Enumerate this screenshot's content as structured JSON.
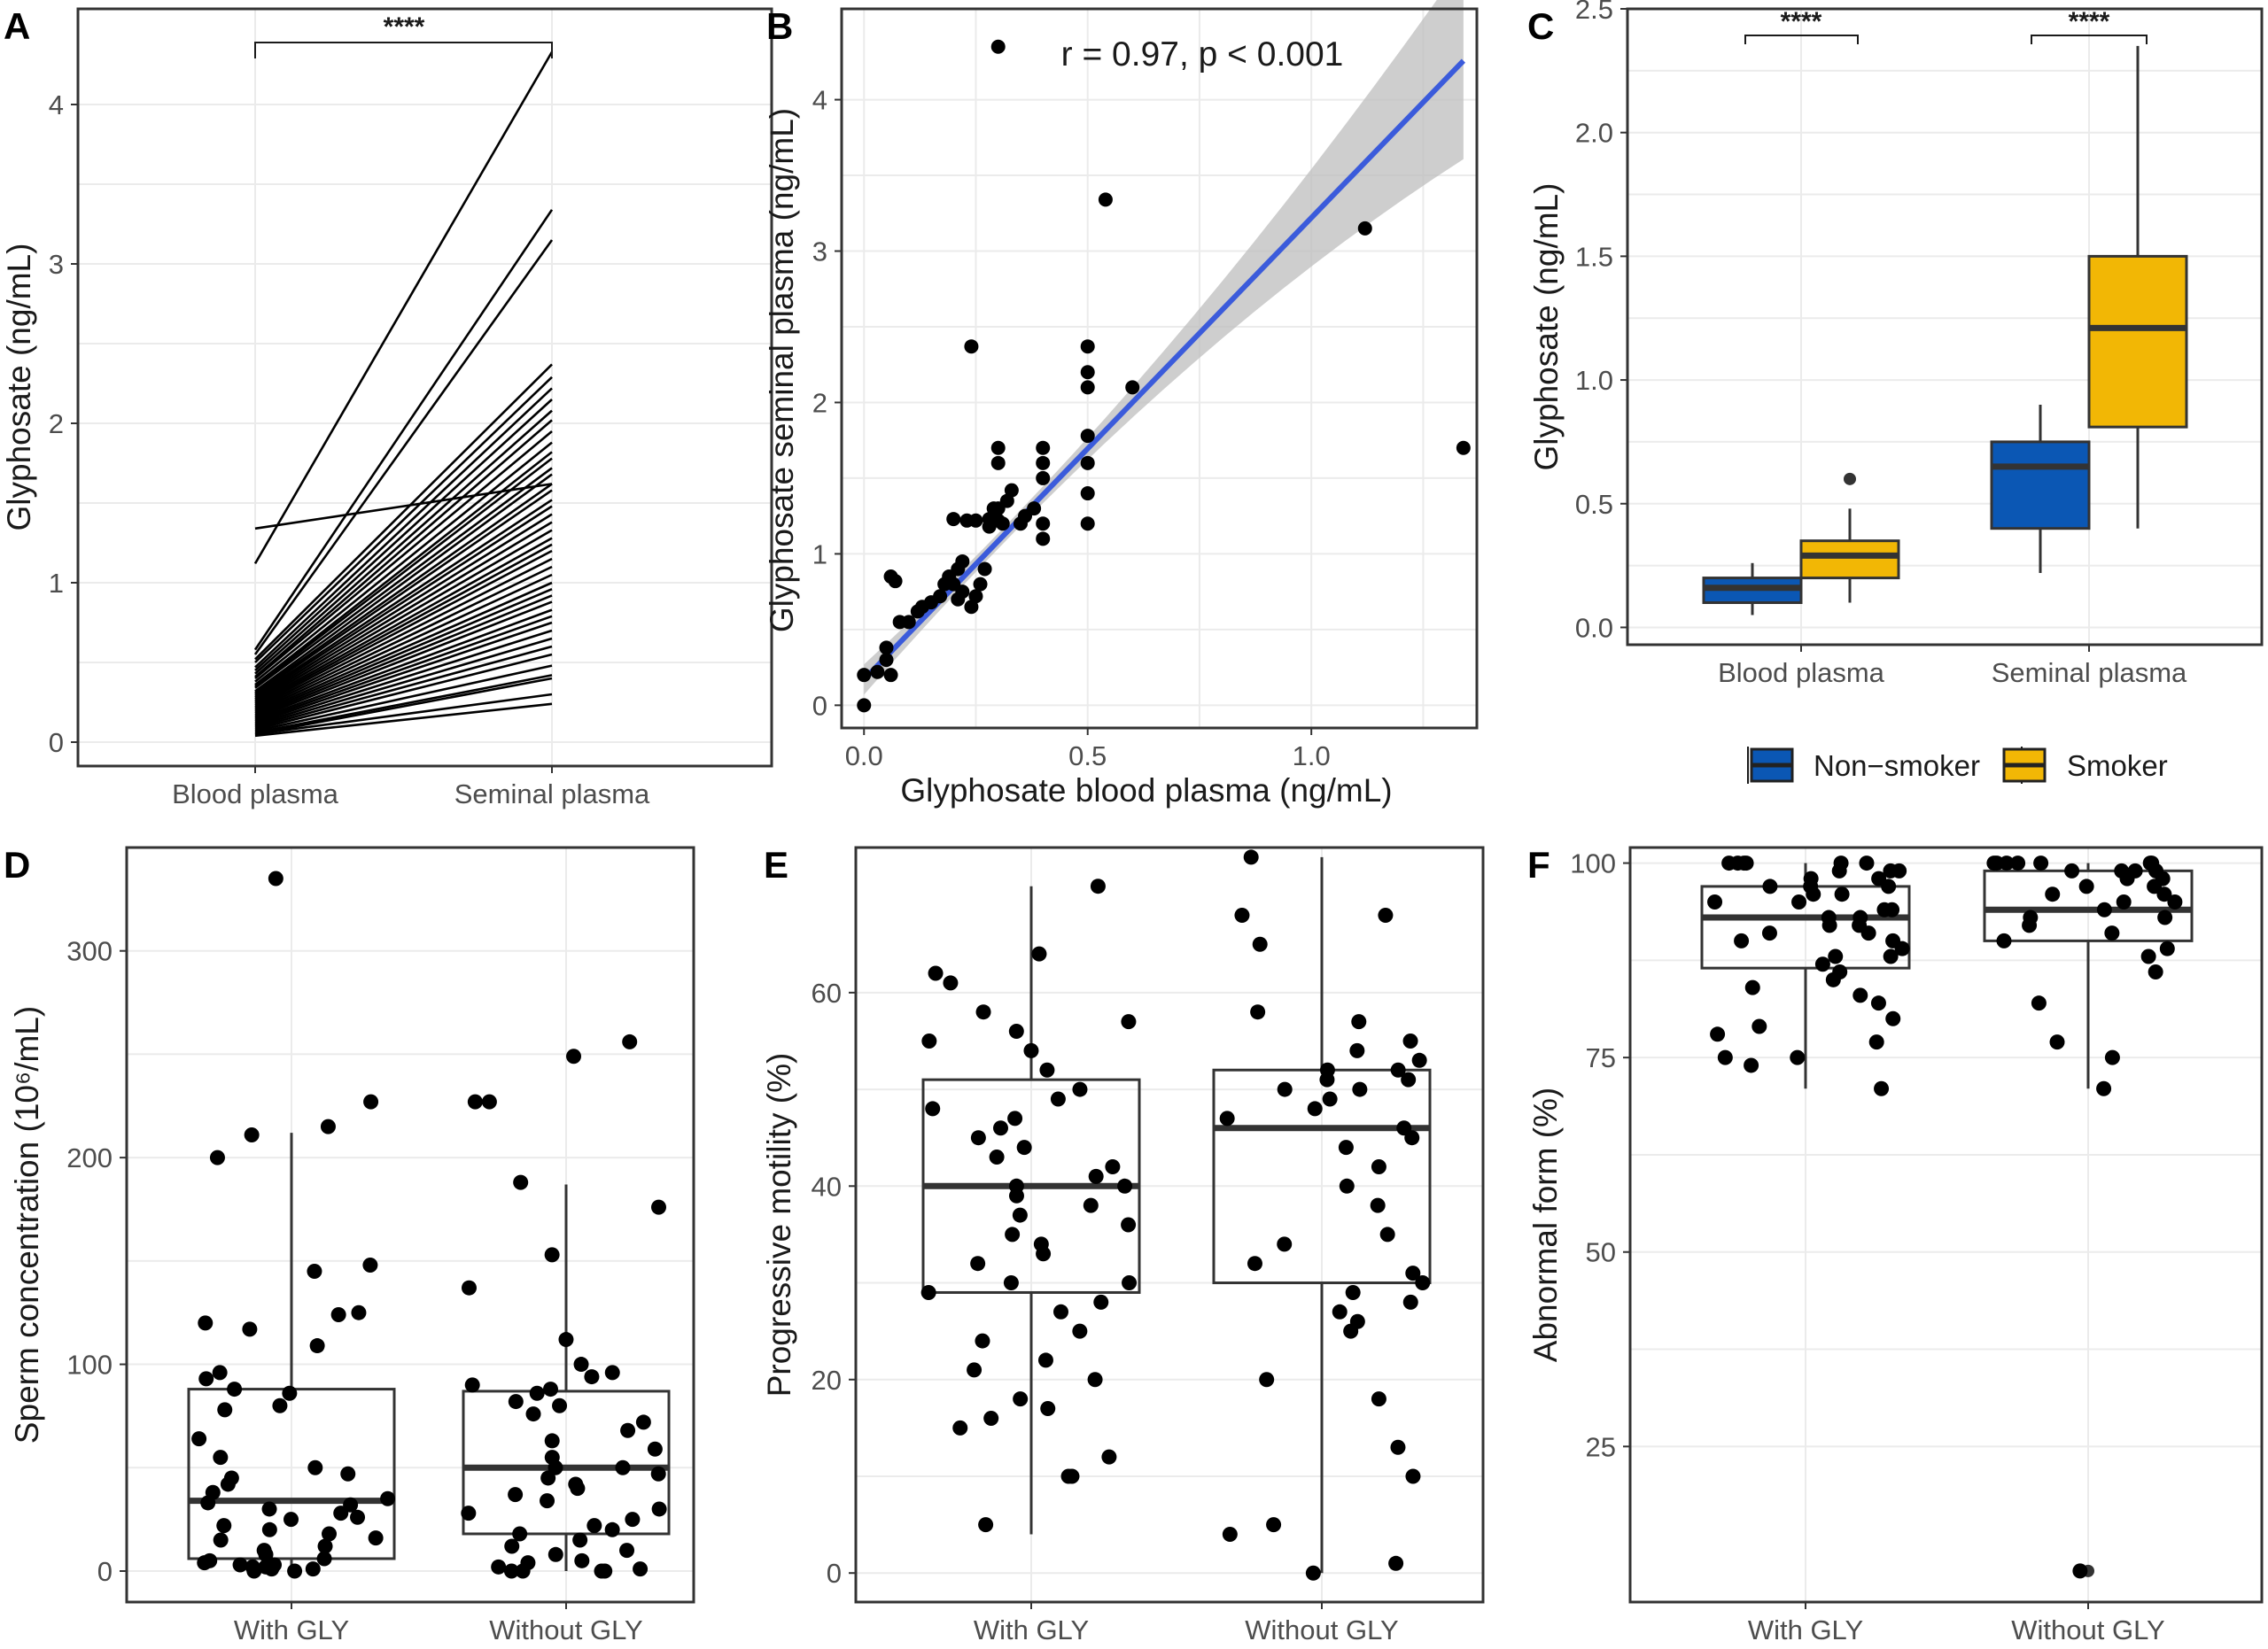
{
  "colors": {
    "nonsmoker": "#0B57B4",
    "smoker": "#F2B705",
    "fit_line": "#3B5BDB",
    "ci_band": "#bdbdbd"
  },
  "chart_data": [
    {
      "panel": "A",
      "type": "line",
      "categories": [
        "Blood plasma",
        "Seminal plasma"
      ],
      "ylabel": "Glyphosate (ng/mL)",
      "ylim": [
        -0.15,
        4.6
      ],
      "yticks": [
        0,
        1,
        2,
        3,
        4
      ],
      "significance": "****",
      "pairs": [
        [
          1.12,
          4.33
        ],
        [
          1.34,
          1.62
        ],
        [
          0.58,
          3.34
        ],
        [
          0.55,
          3.15
        ],
        [
          0.52,
          2.37
        ],
        [
          0.5,
          2.29
        ],
        [
          0.47,
          2.22
        ],
        [
          0.45,
          2.15
        ],
        [
          0.43,
          2.08
        ],
        [
          0.41,
          2.02
        ],
        [
          0.4,
          1.95
        ],
        [
          0.38,
          1.88
        ],
        [
          0.36,
          1.82
        ],
        [
          0.35,
          1.78
        ],
        [
          0.34,
          1.72
        ],
        [
          0.32,
          1.68
        ],
        [
          0.31,
          1.62
        ],
        [
          0.3,
          1.58
        ],
        [
          0.29,
          1.52
        ],
        [
          0.28,
          1.48
        ],
        [
          0.27,
          1.43
        ],
        [
          0.26,
          1.38
        ],
        [
          0.25,
          1.33
        ],
        [
          0.24,
          1.28
        ],
        [
          0.23,
          1.24
        ],
        [
          0.22,
          1.2
        ],
        [
          0.21,
          1.15
        ],
        [
          0.2,
          1.1
        ],
        [
          0.19,
          1.05
        ],
        [
          0.18,
          1.0
        ],
        [
          0.17,
          0.96
        ],
        [
          0.16,
          0.92
        ],
        [
          0.15,
          0.88
        ],
        [
          0.14,
          0.83
        ],
        [
          0.13,
          0.79
        ],
        [
          0.12,
          0.75
        ],
        [
          0.11,
          0.7
        ],
        [
          0.1,
          0.65
        ],
        [
          0.09,
          0.6
        ],
        [
          0.08,
          0.55
        ],
        [
          0.07,
          0.48
        ],
        [
          0.06,
          0.42
        ],
        [
          0.05,
          0.4
        ],
        [
          0.05,
          0.3
        ],
        [
          0.04,
          0.24
        ]
      ]
    },
    {
      "panel": "B",
      "type": "scatter",
      "xlabel": "Glyphosate blood plasma (ng/mL)",
      "ylabel": "Glyphosate seminal plasma (ng/mL)",
      "xlim": [
        -0.05,
        1.37
      ],
      "ylim": [
        -0.15,
        4.6
      ],
      "xticks": [
        "0.0",
        "0.5",
        "1.0"
      ],
      "yticks": [
        0,
        1,
        2,
        3,
        4
      ],
      "annotation": "r = 0.97, p < 0.001",
      "fit": {
        "intercept": 0.17,
        "slope": 3.05,
        "xrange": [
          0,
          1.34
        ]
      },
      "x": [
        0,
        0,
        0.03,
        0.05,
        0.05,
        0.06,
        0.06,
        0.07,
        0.08,
        0.1,
        0.12,
        0.13,
        0.15,
        0.17,
        0.18,
        0.19,
        0.2,
        0.2,
        0.21,
        0.21,
        0.22,
        0.22,
        0.23,
        0.24,
        0.24,
        0.25,
        0.25,
        0.26,
        0.27,
        0.28,
        0.28,
        0.29,
        0.29,
        0.3,
        0.3,
        0.3,
        0.3,
        0.31,
        0.32,
        0.33,
        0.35,
        0.36,
        0.38,
        0.4,
        0.4,
        0.4,
        0.4,
        0.4,
        0.5,
        0.5,
        0.5,
        0.5,
        0.5,
        0.5,
        0.5,
        0.6,
        0.3,
        0.54,
        1.12,
        1.34
      ],
      "y": [
        0,
        0.2,
        0.22,
        0.3,
        0.38,
        0.85,
        0.2,
        0.82,
        0.55,
        0.55,
        0.62,
        0.65,
        0.68,
        0.72,
        0.8,
        0.85,
        0.8,
        1.23,
        0.9,
        0.7,
        0.95,
        0.75,
        1.22,
        0.65,
        2.37,
        0.72,
        1.22,
        0.8,
        0.9,
        1.23,
        1.18,
        1.25,
        1.3,
        1.6,
        1.7,
        1.22,
        1.3,
        1.2,
        1.35,
        1.42,
        1.2,
        1.25,
        1.3,
        1.1,
        1.2,
        1.5,
        1.6,
        1.7,
        1.2,
        1.4,
        1.6,
        1.78,
        2.1,
        2.2,
        2.37,
        2.1,
        4.35,
        3.34,
        3.15,
        1.7
      ]
    },
    {
      "panel": "C",
      "type": "box",
      "categories": [
        "Blood plasma",
        "Seminal plasma"
      ],
      "ylabel": "Glyphosate (ng/mL)",
      "ylim": [
        -0.07,
        2.5
      ],
      "yticks": [
        "0.0",
        "0.5",
        "1.0",
        "1.5",
        "2.0",
        "2.5"
      ],
      "legend": {
        "position": "bottom",
        "entries": [
          "Non−smoker",
          "Smoker"
        ]
      },
      "significance": [
        "****",
        "****"
      ],
      "series": [
        {
          "name": "Non−smoker",
          "boxes": [
            {
              "min": 0.05,
              "q1": 0.1,
              "median": 0.16,
              "q3": 0.2,
              "max": 0.26,
              "outliers": []
            },
            {
              "min": 0.22,
              "q1": 0.4,
              "median": 0.65,
              "q3": 0.75,
              "max": 0.9,
              "outliers": []
            }
          ]
        },
        {
          "name": "Smoker",
          "boxes": [
            {
              "min": 0.1,
              "q1": 0.2,
              "median": 0.29,
              "q3": 0.35,
              "max": 0.48,
              "outliers": [
                0.6
              ]
            },
            {
              "min": 0.4,
              "q1": 0.81,
              "median": 1.21,
              "q3": 1.5,
              "max": 2.35,
              "outliers": []
            }
          ]
        }
      ]
    },
    {
      "panel": "D",
      "type": "box",
      "categories": [
        "With GLY",
        "Without GLY"
      ],
      "ylabel": "Sperm concentration (10⁶/mL)",
      "ylim": [
        -15,
        350
      ],
      "yticks": [
        0,
        100,
        200,
        300
      ],
      "boxes": [
        {
          "min": 0,
          "q1": 6,
          "median": 34,
          "q3": 88,
          "max": 212,
          "outliers": []
        },
        {
          "min": 0,
          "q1": 18,
          "median": 50,
          "q3": 87,
          "max": 187,
          "outliers": []
        }
      ],
      "points": [
        [
          335,
          211,
          148,
          145,
          227,
          215,
          200,
          125,
          120,
          117,
          124,
          109,
          96,
          93,
          88,
          86,
          80,
          78,
          64,
          55,
          50,
          47,
          45,
          42,
          38,
          35,
          33,
          32,
          30,
          28,
          26,
          25,
          22,
          20,
          18,
          16,
          15,
          12,
          10,
          8,
          6,
          5,
          4,
          3,
          3,
          2,
          2,
          1,
          1,
          0,
          0
        ],
        [
          256,
          249,
          227,
          227,
          188,
          176,
          153,
          137,
          112,
          100,
          96,
          94,
          90,
          88,
          86,
          82,
          80,
          76,
          72,
          68,
          63,
          59,
          55,
          50,
          50,
          47,
          45,
          42,
          40,
          37,
          34,
          30,
          28,
          25,
          22,
          20,
          18,
          15,
          12,
          10,
          8,
          5,
          4,
          2,
          1,
          0,
          0,
          0,
          0
        ]
      ]
    },
    {
      "panel": "E",
      "type": "box",
      "categories": [
        "With GLY",
        "Without GLY"
      ],
      "ylabel": "Progressive motility (%)",
      "ylim": [
        -3,
        75
      ],
      "yticks": [
        0,
        20,
        40,
        60
      ],
      "boxes": [
        {
          "min": 4,
          "q1": 29,
          "median": 40,
          "q3": 51,
          "max": 71,
          "outliers": []
        },
        {
          "min": 0,
          "q1": 30,
          "median": 46,
          "q3": 52,
          "max": 74,
          "outliers": []
        }
      ],
      "points": [
        [
          71,
          64,
          62,
          61,
          58,
          57,
          56,
          55,
          54,
          52,
          50,
          49,
          48,
          47,
          46,
          45,
          44,
          43,
          42,
          41,
          40,
          40,
          39,
          38,
          37,
          36,
          35,
          34,
          33,
          32,
          30,
          30,
          29,
          28,
          27,
          25,
          24,
          22,
          21,
          20,
          18,
          17,
          16,
          15,
          12,
          10,
          10,
          5
        ],
        [
          74,
          68,
          68,
          65,
          58,
          57,
          55,
          54,
          53,
          52,
          52,
          51,
          51,
          50,
          50,
          49,
          48,
          47,
          46,
          45,
          44,
          42,
          40,
          38,
          35,
          34,
          32,
          31,
          30,
          29,
          28,
          27,
          26,
          25,
          20,
          18,
          13,
          10,
          5,
          4,
          1,
          0
        ]
      ]
    },
    {
      "panel": "F",
      "type": "box",
      "categories": [
        "With GLY",
        "Without GLY"
      ],
      "ylabel": "Abnormal form (%)",
      "ylim": [
        5,
        102
      ],
      "yticks": [
        25,
        50,
        75,
        100
      ],
      "boxes": [
        {
          "min": 71,
          "q1": 86.5,
          "median": 93,
          "q3": 97,
          "max": 100,
          "outliers": []
        },
        {
          "min": 71,
          "q1": 90,
          "median": 94,
          "q3": 99,
          "max": 100,
          "outliers": [
            9
          ]
        }
      ],
      "points": [
        [
          100,
          100,
          100,
          100,
          100,
          100,
          99,
          99,
          99,
          98,
          98,
          97,
          97,
          97,
          96,
          96,
          95,
          95,
          94,
          94,
          93,
          93,
          92,
          92,
          91,
          91,
          90,
          90,
          89,
          88,
          88,
          87,
          86,
          85,
          84,
          83,
          82,
          80,
          79,
          78,
          77,
          75,
          75,
          74,
          71
        ],
        [
          100,
          100,
          100,
          100,
          100,
          100,
          100,
          99,
          99,
          99,
          99,
          98,
          98,
          97,
          97,
          96,
          96,
          95,
          95,
          94,
          93,
          93,
          92,
          91,
          90,
          89,
          88,
          86,
          82,
          77,
          75,
          71,
          9
        ]
      ]
    }
  ]
}
